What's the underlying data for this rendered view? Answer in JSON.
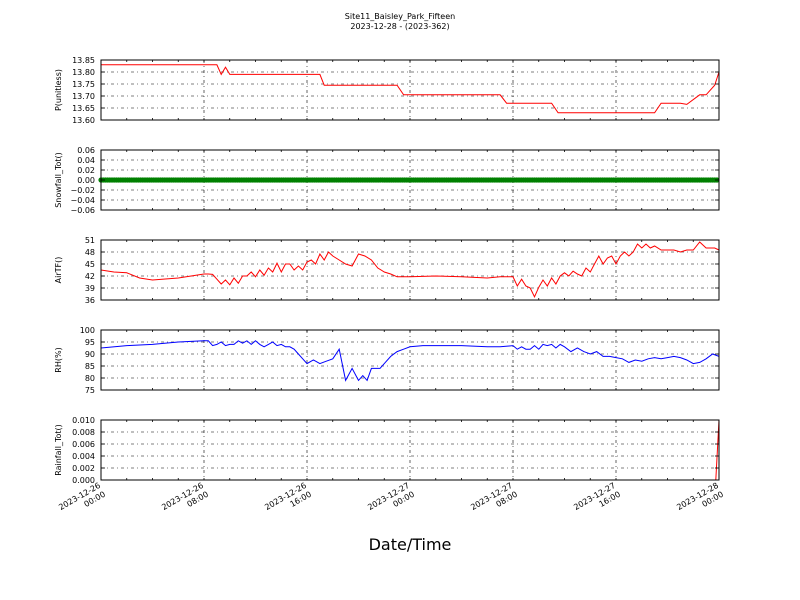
{
  "chart_data": {
    "type": "line",
    "title": "Site11_Baisley_Park_Fifteen",
    "subtitle": "2023-12-28 - (2023-362)",
    "xlabel": "Date/Time",
    "x_range": [
      "2023-12-26 00:00",
      "2023-12-28 00:00"
    ],
    "x_ticks": [
      {
        "value": "2023-12-26 00:00",
        "line1": "2023-12-26",
        "line2": "00:00"
      },
      {
        "value": "2023-12-26 08:00",
        "line1": "2023-12-26",
        "line2": "08:00"
      },
      {
        "value": "2023-12-26 16:00",
        "line1": "2023-12-26",
        "line2": "16:00"
      },
      {
        "value": "2023-12-27 00:00",
        "line1": "2023-12-27",
        "line2": "00:00"
      },
      {
        "value": "2023-12-27 08:00",
        "line1": "2023-12-27",
        "line2": "08:00"
      },
      {
        "value": "2023-12-27 16:00",
        "line1": "2023-12-27",
        "line2": "16:00"
      },
      {
        "value": "2023-12-28 00:00",
        "line1": "2023-12-28",
        "line2": "00:00"
      }
    ],
    "grid": true,
    "panels": [
      {
        "ylabel": "P(unitless)",
        "ylim": [
          13.6,
          13.85
        ],
        "yticks": [
          "13.60",
          "13.65",
          "13.70",
          "13.75",
          "13.80",
          "13.85"
        ],
        "color": "#ff0000",
        "style": "line",
        "series": {
          "x": [
            "2023-12-26 00:00",
            "2023-12-26 02:00",
            "2023-12-26 04:00",
            "2023-12-26 06:00",
            "2023-12-26 08:00",
            "2023-12-26 09:00",
            "2023-12-26 09:20",
            "2023-12-26 09:40",
            "2023-12-26 10:00",
            "2023-12-26 12:00",
            "2023-12-26 14:00",
            "2023-12-26 16:00",
            "2023-12-26 17:00",
            "2023-12-26 17:20",
            "2023-12-26 20:00",
            "2023-12-26 22:00",
            "2023-12-26 23:00",
            "2023-12-26 23:30",
            "2023-12-27 02:00",
            "2023-12-27 04:00",
            "2023-12-27 06:00",
            "2023-12-27 07:00",
            "2023-12-27 07:30",
            "2023-12-27 10:00",
            "2023-12-27 11:00",
            "2023-12-27 11:30",
            "2023-12-27 14:00",
            "2023-12-27 16:00",
            "2023-12-27 18:00",
            "2023-12-27 19:00",
            "2023-12-27 19:30",
            "2023-12-27 21:00",
            "2023-12-27 21:30",
            "2023-12-27 22:30",
            "2023-12-27 23:00",
            "2023-12-27 23:40",
            "2023-12-28 00:00"
          ],
          "y": [
            13.83,
            13.83,
            13.83,
            13.83,
            13.83,
            13.83,
            13.79,
            13.82,
            13.79,
            13.79,
            13.79,
            13.79,
            13.79,
            13.745,
            13.745,
            13.745,
            13.745,
            13.705,
            13.705,
            13.705,
            13.705,
            13.705,
            13.67,
            13.67,
            13.67,
            13.63,
            13.63,
            13.63,
            13.63,
            13.63,
            13.67,
            13.67,
            13.665,
            13.705,
            13.705,
            13.745,
            13.8
          ]
        }
      },
      {
        "ylabel": "Snowfall_Tot()",
        "ylim": [
          -0.06,
          0.06
        ],
        "yticks": [
          "−0.06",
          "−0.04",
          "−0.02",
          "0.00",
          "0.02",
          "0.04",
          "0.06"
        ],
        "color": "#008000",
        "style": "markers",
        "series": {
          "x": [
            "2023-12-26 00:00",
            "2023-12-28 00:00"
          ],
          "y": [
            0.0,
            0.0
          ]
        }
      },
      {
        "ylabel": "AirTF()",
        "ylim": [
          36,
          51
        ],
        "yticks": [
          "36",
          "39",
          "42",
          "45",
          "48",
          "51"
        ],
        "color": "#ff0000",
        "style": "line",
        "series": {
          "x": [
            "2023-12-26 00:00",
            "2023-12-26 01:00",
            "2023-12-26 02:00",
            "2023-12-26 03:00",
            "2023-12-26 04:00",
            "2023-12-26 06:00",
            "2023-12-26 07:00",
            "2023-12-26 08:00",
            "2023-12-26 08:20",
            "2023-12-26 08:40",
            "2023-12-26 09:00",
            "2023-12-26 09:20",
            "2023-12-26 09:40",
            "2023-12-26 10:00",
            "2023-12-26 10:20",
            "2023-12-26 10:40",
            "2023-12-26 11:00",
            "2023-12-26 11:20",
            "2023-12-26 11:40",
            "2023-12-26 12:00",
            "2023-12-26 12:20",
            "2023-12-26 12:40",
            "2023-12-26 13:00",
            "2023-12-26 13:20",
            "2023-12-26 13:40",
            "2023-12-26 14:00",
            "2023-12-26 14:20",
            "2023-12-26 14:40",
            "2023-12-26 15:00",
            "2023-12-26 15:20",
            "2023-12-26 15:40",
            "2023-12-26 16:00",
            "2023-12-26 16:20",
            "2023-12-26 16:40",
            "2023-12-26 17:00",
            "2023-12-26 17:20",
            "2023-12-26 17:40",
            "2023-12-26 18:00",
            "2023-12-26 18:30",
            "2023-12-26 19:00",
            "2023-12-26 19:30",
            "2023-12-26 20:00",
            "2023-12-26 20:30",
            "2023-12-26 21:00",
            "2023-12-26 21:30",
            "2023-12-26 22:00",
            "2023-12-26 22:30",
            "2023-12-26 23:00",
            "2023-12-27 00:00",
            "2023-12-27 02:00",
            "2023-12-27 04:00",
            "2023-12-27 06:00",
            "2023-12-27 07:00",
            "2023-12-27 08:00",
            "2023-12-27 08:20",
            "2023-12-27 08:40",
            "2023-12-27 09:00",
            "2023-12-27 09:20",
            "2023-12-27 09:40",
            "2023-12-27 10:00",
            "2023-12-27 10:20",
            "2023-12-27 10:40",
            "2023-12-27 11:00",
            "2023-12-27 11:20",
            "2023-12-27 11:40",
            "2023-12-27 12:00",
            "2023-12-27 12:20",
            "2023-12-27 12:40",
            "2023-12-27 13:00",
            "2023-12-27 13:20",
            "2023-12-27 13:40",
            "2023-12-27 14:00",
            "2023-12-27 14:20",
            "2023-12-27 14:40",
            "2023-12-27 15:00",
            "2023-12-27 15:20",
            "2023-12-27 15:40",
            "2023-12-27 16:00",
            "2023-12-27 16:20",
            "2023-12-27 16:40",
            "2023-12-27 17:00",
            "2023-12-27 17:20",
            "2023-12-27 17:40",
            "2023-12-27 18:00",
            "2023-12-27 18:20",
            "2023-12-27 18:40",
            "2023-12-27 19:00",
            "2023-12-27 19:30",
            "2023-12-27 20:00",
            "2023-12-27 20:30",
            "2023-12-27 21:00",
            "2023-12-27 21:30",
            "2023-12-27 22:00",
            "2023-12-27 22:30",
            "2023-12-27 23:00",
            "2023-12-27 23:20",
            "2023-12-27 23:40",
            "2023-12-28 00:00"
          ],
          "y": [
            43.5,
            43,
            42.8,
            41.5,
            41,
            41.5,
            42,
            42.5,
            42.5,
            42.4,
            41.2,
            40,
            41,
            39.8,
            41.5,
            40.2,
            42,
            42,
            43,
            41.8,
            43.5,
            42.2,
            44,
            43,
            45.2,
            43,
            45,
            45,
            43.5,
            44.5,
            43.5,
            45.5,
            46,
            45,
            47.5,
            46,
            48,
            47,
            46,
            45,
            44.5,
            47.5,
            47,
            46,
            44,
            43,
            42.5,
            41.8,
            41.8,
            42,
            41.8,
            41.5,
            41.8,
            41.8,
            39.5,
            41.2,
            39.5,
            39,
            36.8,
            39.2,
            41,
            39.5,
            41.5,
            40,
            42,
            42.8,
            42,
            43.2,
            42.5,
            42,
            44,
            43,
            45,
            47,
            45,
            46.5,
            47,
            45,
            47,
            48,
            47,
            48,
            50,
            49,
            50,
            49,
            49.5,
            48.5,
            48.5,
            48.5,
            48,
            48.5,
            48.5,
            50.5,
            49,
            49,
            49,
            48.5
          ]
        }
      },
      {
        "ylabel": "RH(%)",
        "ylim": [
          75,
          100
        ],
        "yticks": [
          "75",
          "80",
          "85",
          "90",
          "95",
          "100"
        ],
        "color": "#0000ff",
        "style": "line",
        "series": {
          "x": [
            "2023-12-26 00:00",
            "2023-12-26 02:00",
            "2023-12-26 04:00",
            "2023-12-26 06:00",
            "2023-12-26 08:00",
            "2023-12-26 08:20",
            "2023-12-26 08:40",
            "2023-12-26 09:00",
            "2023-12-26 09:20",
            "2023-12-26 09:40",
            "2023-12-26 10:00",
            "2023-12-26 10:20",
            "2023-12-26 10:40",
            "2023-12-26 11:00",
            "2023-12-26 11:20",
            "2023-12-26 11:40",
            "2023-12-26 12:00",
            "2023-12-26 12:20",
            "2023-12-26 12:40",
            "2023-12-26 13:00",
            "2023-12-26 13:20",
            "2023-12-26 13:40",
            "2023-12-26 14:00",
            "2023-12-26 14:20",
            "2023-12-26 14:40",
            "2023-12-26 15:00",
            "2023-12-26 15:20",
            "2023-12-26 15:40",
            "2023-12-26 16:00",
            "2023-12-26 16:30",
            "2023-12-26 17:00",
            "2023-12-26 17:30",
            "2023-12-26 18:00",
            "2023-12-26 18:30",
            "2023-12-26 19:00",
            "2023-12-26 19:30",
            "2023-12-26 20:00",
            "2023-12-26 20:20",
            "2023-12-26 20:40",
            "2023-12-26 21:00",
            "2023-12-26 21:20",
            "2023-12-26 21:40",
            "2023-12-26 22:00",
            "2023-12-26 22:30",
            "2023-12-26 23:00",
            "2023-12-26 23:30",
            "2023-12-27 00:00",
            "2023-12-27 01:00",
            "2023-12-27 02:00",
            "2023-12-27 04:00",
            "2023-12-27 06:00",
            "2023-12-27 07:00",
            "2023-12-27 08:00",
            "2023-12-27 08:20",
            "2023-12-27 08:40",
            "2023-12-27 09:00",
            "2023-12-27 09:20",
            "2023-12-27 09:40",
            "2023-12-27 10:00",
            "2023-12-27 10:20",
            "2023-12-27 10:40",
            "2023-12-27 11:00",
            "2023-12-27 11:20",
            "2023-12-27 11:40",
            "2023-12-27 12:00",
            "2023-12-27 12:30",
            "2023-12-27 13:00",
            "2023-12-27 13:30",
            "2023-12-27 14:00",
            "2023-12-27 14:30",
            "2023-12-27 15:00",
            "2023-12-27 15:30",
            "2023-12-27 16:00",
            "2023-12-27 16:30",
            "2023-12-27 17:00",
            "2023-12-27 17:30",
            "2023-12-27 18:00",
            "2023-12-27 18:30",
            "2023-12-27 19:00",
            "2023-12-27 19:30",
            "2023-12-27 20:00",
            "2023-12-27 20:30",
            "2023-12-27 21:00",
            "2023-12-27 21:30",
            "2023-12-27 22:00",
            "2023-12-27 22:30",
            "2023-12-27 23:00",
            "2023-12-27 23:30",
            "2023-12-28 00:00"
          ],
          "y": [
            92.5,
            93.5,
            94,
            95,
            95.5,
            95.5,
            93.5,
            94,
            95,
            93.5,
            94,
            94,
            95.5,
            94.5,
            95.5,
            94,
            95.5,
            94,
            93,
            94,
            95,
            93.5,
            94,
            93,
            93,
            92,
            90,
            88,
            86,
            87.5,
            86,
            87,
            88,
            92,
            79,
            84,
            79,
            81,
            79,
            84,
            84,
            84,
            86,
            89,
            91,
            92,
            93,
            93.5,
            93.5,
            93.5,
            93,
            93,
            93.5,
            92,
            93,
            92,
            92,
            93.5,
            92,
            94,
            93.5,
            94,
            92.5,
            94,
            93,
            91,
            92.5,
            91,
            90,
            91,
            89,
            89,
            88.5,
            88,
            86.5,
            87.5,
            87,
            88,
            88.5,
            88,
            88.5,
            89,
            88.5,
            87.5,
            86,
            86.5,
            88,
            90,
            89
          ]
        }
      },
      {
        "ylabel": "Rainfall_Tot()",
        "ylim": [
          0.0,
          0.01
        ],
        "yticks": [
          "0.000",
          "0.002",
          "0.004",
          "0.006",
          "0.008",
          "0.010"
        ],
        "color": "#ff0000",
        "style": "line",
        "series": {
          "x": [
            "2023-12-26 00:00",
            "2023-12-27 23:45",
            "2023-12-28 00:00"
          ],
          "y": [
            0.0,
            0.0,
            0.01
          ]
        }
      }
    ]
  }
}
